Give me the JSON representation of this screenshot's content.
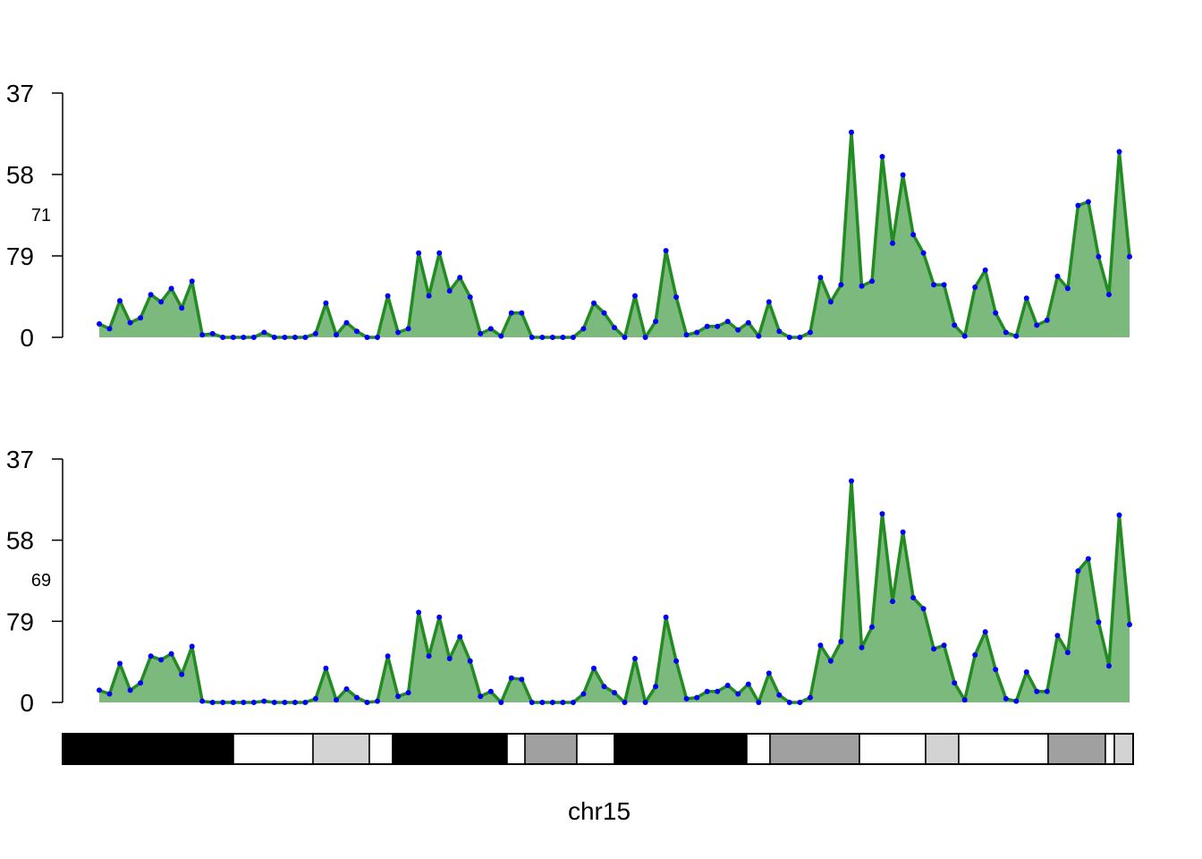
{
  "chart_data": [
    {
      "type": "area",
      "sample_label": "71",
      "y_tick_labels": [
        "0",
        "79",
        "58",
        "37"
      ],
      "colors": {
        "fill": "#7cb97c",
        "line": "#228b22",
        "points": "#0000ff"
      },
      "values": [
        0.055,
        0.035,
        0.15,
        0.06,
        0.08,
        0.175,
        0.145,
        0.2,
        0.12,
        0.23,
        0.01,
        0.015,
        0.0,
        0.0,
        0.0,
        0.0,
        0.02,
        0.0,
        0.0,
        0.0,
        0.0,
        0.015,
        0.14,
        0.01,
        0.06,
        0.025,
        0.0,
        0.0,
        0.17,
        0.02,
        0.035,
        0.345,
        0.17,
        0.345,
        0.19,
        0.245,
        0.165,
        0.015,
        0.035,
        0.005,
        0.1,
        0.1,
        0.0,
        0.0,
        0.0,
        0.0,
        0.0,
        0.035,
        0.14,
        0.1,
        0.04,
        0.0,
        0.17,
        0.0,
        0.065,
        0.355,
        0.165,
        0.01,
        0.02,
        0.045,
        0.045,
        0.065,
        0.03,
        0.06,
        0.005,
        0.145,
        0.025,
        0.0,
        0.0,
        0.02,
        0.245,
        0.145,
        0.215,
        0.84,
        0.21,
        0.23,
        0.74,
        0.385,
        0.665,
        0.42,
        0.345,
        0.215,
        0.215,
        0.05,
        0.005,
        0.205,
        0.275,
        0.1,
        0.02,
        0.005,
        0.16,
        0.05,
        0.07,
        0.25,
        0.2,
        0.54,
        0.555,
        0.33,
        0.175,
        0.76,
        0.33
      ]
    },
    {
      "type": "area",
      "sample_label": "69",
      "y_tick_labels": [
        "0",
        "79",
        "58",
        "37"
      ],
      "colors": {
        "fill": "#7cb97c",
        "line": "#228b22",
        "points": "#0000ff"
      },
      "values": [
        0.05,
        0.035,
        0.16,
        0.05,
        0.08,
        0.19,
        0.175,
        0.2,
        0.115,
        0.23,
        0.005,
        0.0,
        0.0,
        0.0,
        0.0,
        0.0,
        0.005,
        0.0,
        0.0,
        0.0,
        0.0,
        0.015,
        0.14,
        0.01,
        0.055,
        0.02,
        0.0,
        0.005,
        0.19,
        0.025,
        0.04,
        0.37,
        0.19,
        0.35,
        0.18,
        0.27,
        0.17,
        0.025,
        0.045,
        0.0,
        0.1,
        0.095,
        0.0,
        0.0,
        0.0,
        0.0,
        0.0,
        0.035,
        0.14,
        0.065,
        0.04,
        0.0,
        0.18,
        0.0,
        0.065,
        0.35,
        0.17,
        0.015,
        0.02,
        0.045,
        0.045,
        0.07,
        0.035,
        0.075,
        0.0,
        0.12,
        0.03,
        0.0,
        0.0,
        0.02,
        0.235,
        0.17,
        0.25,
        0.91,
        0.225,
        0.31,
        0.775,
        0.415,
        0.7,
        0.43,
        0.385,
        0.22,
        0.235,
        0.08,
        0.01,
        0.195,
        0.29,
        0.135,
        0.015,
        0.005,
        0.125,
        0.045,
        0.045,
        0.275,
        0.205,
        0.54,
        0.59,
        0.33,
        0.15,
        0.77,
        0.32
      ]
    }
  ],
  "ideogram": {
    "label": "chr15",
    "bands": [
      {
        "w": 191,
        "color": "#000000"
      },
      {
        "w": 89,
        "color": "#ffffff"
      },
      {
        "w": 63,
        "color": "#d3d3d3"
      },
      {
        "w": 26,
        "color": "#ffffff"
      },
      {
        "w": 128,
        "color": "#000000"
      },
      {
        "w": 20,
        "color": "#ffffff"
      },
      {
        "w": 58,
        "color": "#a0a0a0"
      },
      {
        "w": 42,
        "color": "#ffffff"
      },
      {
        "w": 148,
        "color": "#000000"
      },
      {
        "w": 26,
        "color": "#ffffff"
      },
      {
        "w": 100,
        "color": "#a0a0a0"
      },
      {
        "w": 74,
        "color": "#ffffff"
      },
      {
        "w": 37,
        "color": "#d3d3d3"
      },
      {
        "w": 100,
        "color": "#ffffff"
      },
      {
        "w": 64,
        "color": "#a0a0a0"
      },
      {
        "w": 10,
        "color": "#ffffff"
      },
      {
        "w": 21,
        "color": "#d3d3d3"
      }
    ]
  }
}
